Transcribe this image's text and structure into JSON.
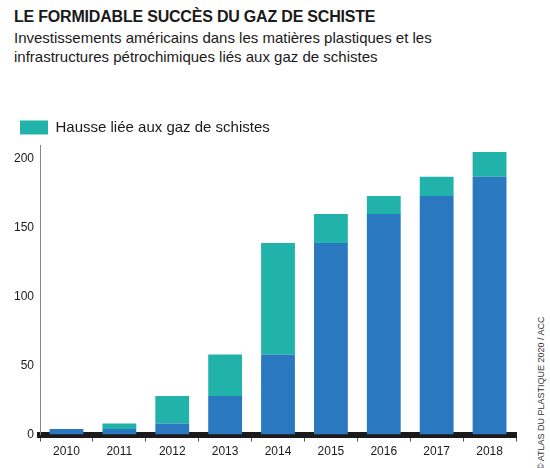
{
  "chart_data": {
    "type": "bar",
    "title": "LE FORMIDABLE SUCCÈS DU GAZ DE SCHISTE",
    "subtitle": "Investissements américains dans les matières plastiques et les infrastructures pétrochimiques liés aux gaz de schistes",
    "source": "© ATLAS DU PLASTIQUE 2020 / ACC",
    "categories": [
      "2010",
      "2011",
      "2012",
      "2013",
      "2014",
      "2015",
      "2016",
      "2017",
      "2018"
    ],
    "series": [
      {
        "color": "#2a79c0",
        "values": [
          4,
          4,
          8,
          28,
          58,
          139,
          160,
          173,
          187
        ]
      },
      {
        "name": "Hausse liée aux gaz de schistes",
        "color": "#21b3aa",
        "values": [
          0,
          4,
          20,
          30,
          81,
          21,
          13,
          14,
          18
        ]
      }
    ],
    "stacked": true,
    "ylim": [
      0,
      210
    ],
    "yticks": [
      0,
      50,
      100,
      150,
      200
    ],
    "grid": false,
    "legend": "upper left"
  }
}
